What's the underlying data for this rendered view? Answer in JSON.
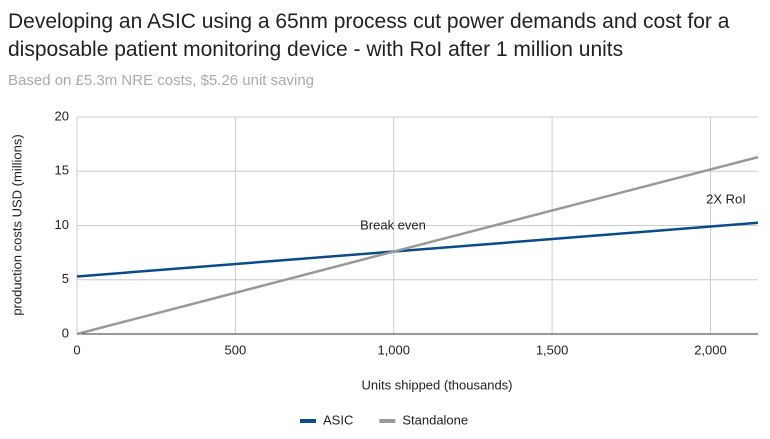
{
  "chart_data": {
    "type": "line",
    "title": "Developing an ASIC using a 65nm process cut power demands and cost for a disposable patient monitoring device - with RoI after 1 million units",
    "subtitle": "Based on £5.3m NRE costs, $5.26 unit saving",
    "x_label": "Units shipped (thousands)",
    "y_label": "production costs USD (millions)",
    "x": [
      0,
      1000,
      2150
    ],
    "series": [
      {
        "name": "ASIC",
        "color": "#0b4a8b",
        "values": [
          5.3,
          7.6,
          10.25
        ]
      },
      {
        "name": "Standalone",
        "color": "#999999",
        "values": [
          0,
          7.6,
          16.3
        ]
      }
    ],
    "annotations": [
      "Break even",
      "2X RoI"
    ],
    "xlim": [
      0,
      2150
    ],
    "ylim": [
      0,
      20
    ],
    "xticks": [
      0,
      500,
      {
        "value": 1000,
        "label": "1,000"
      },
      {
        "value": 1500,
        "label": "1,500"
      },
      {
        "value": 2000,
        "label": "2,000"
      }
    ],
    "yticks": [
      0,
      5,
      10,
      15,
      20
    ],
    "grid": true,
    "legend": "bottom"
  }
}
